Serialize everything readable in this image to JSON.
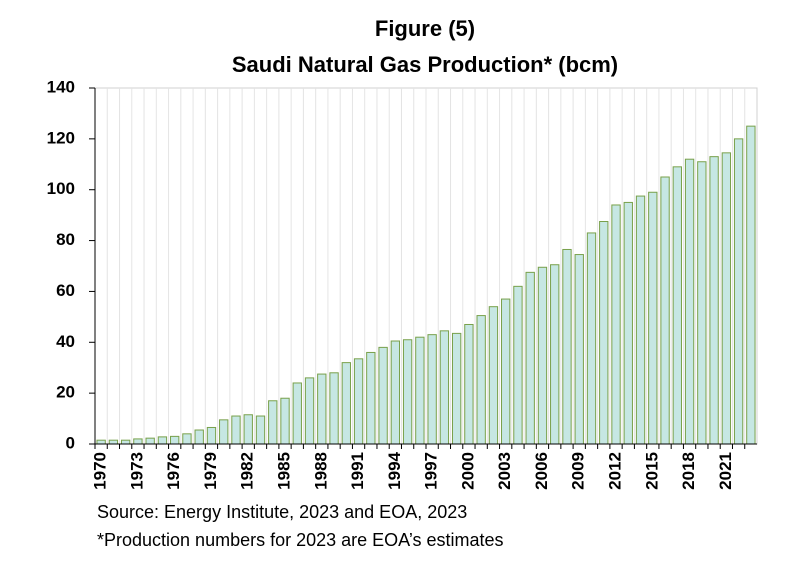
{
  "chart_data": {
    "type": "bar",
    "title": "Figure (5)",
    "subtitle": "Saudi Natural Gas Production* (bcm)",
    "categories": [
      "1970",
      null,
      null,
      "1973",
      null,
      null,
      "1976",
      null,
      null,
      "1979",
      null,
      null,
      "1982",
      null,
      null,
      "1985",
      null,
      null,
      "1988",
      null,
      null,
      "1991",
      null,
      null,
      "1994",
      null,
      null,
      "1997",
      null,
      null,
      "2000",
      null,
      null,
      "2003",
      null,
      null,
      "2006",
      null,
      null,
      "2009",
      null,
      null,
      "2012",
      null,
      null,
      "2015",
      null,
      null,
      "2018",
      null,
      null,
      "2021",
      null,
      null
    ],
    "values": [
      1.5,
      1.5,
      1.5,
      2,
      2.3,
      2.8,
      3,
      4,
      5.5,
      6.5,
      9.5,
      11,
      11.5,
      11,
      17,
      18,
      24,
      26,
      27.5,
      28,
      32,
      33.5,
      36,
      38,
      40.5,
      41,
      42,
      43,
      44.5,
      43.5,
      47,
      50.5,
      54,
      57,
      62,
      67.5,
      69.5,
      70.5,
      76.5,
      74.5,
      83,
      87.5,
      94,
      95,
      97.5,
      99,
      105,
      109,
      112,
      111,
      113,
      114.5,
      120,
      125
    ],
    "color": "#c6e7e3",
    "edge_color": "#78a04a",
    "ylim": [
      0,
      140
    ],
    "yticks": [
      0,
      20,
      40,
      60,
      80,
      100,
      120,
      140
    ],
    "notes": [
      "Source: Energy Institute, 2023 and EOA, 2023",
      "*Production numbers for 2023 are EOA’s estimates"
    ]
  }
}
